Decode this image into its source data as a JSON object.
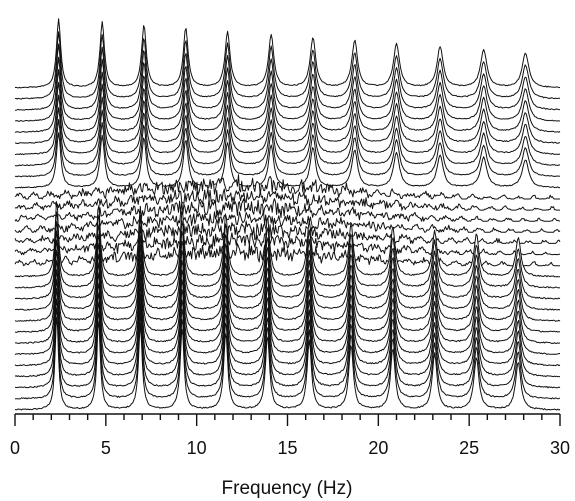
{
  "chart_data": {
    "type": "line",
    "subtype": "waterfall-spectra",
    "xlabel": "Frequency (Hz)",
    "xlim": [
      0,
      30
    ],
    "x_ticks": [
      0,
      5,
      10,
      15,
      20,
      25,
      30
    ],
    "x_tick_labels": [
      "0",
      "5",
      "10",
      "15",
      "20",
      "25",
      "30"
    ],
    "x_minor_tick_step": 1,
    "grid": false,
    "legend": "none",
    "n_traces": 30,
    "bottom_traces": {
      "count": 13,
      "peak_frequencies_hz": [
        2.3,
        4.6,
        6.9,
        9.2,
        11.6,
        13.9,
        16.2,
        18.5,
        20.8,
        23.1,
        25.4,
        27.7
      ]
    },
    "top_traces": {
      "count": 10,
      "peak_frequencies_hz": [
        2.4,
        4.8,
        7.1,
        9.4,
        11.7,
        14.1,
        16.4,
        18.7,
        21.0,
        23.4,
        25.8,
        28.1
      ]
    },
    "transition_traces": {
      "count": 7,
      "appearance": "noisy broadband spectra"
    },
    "line_color": "#111111"
  }
}
